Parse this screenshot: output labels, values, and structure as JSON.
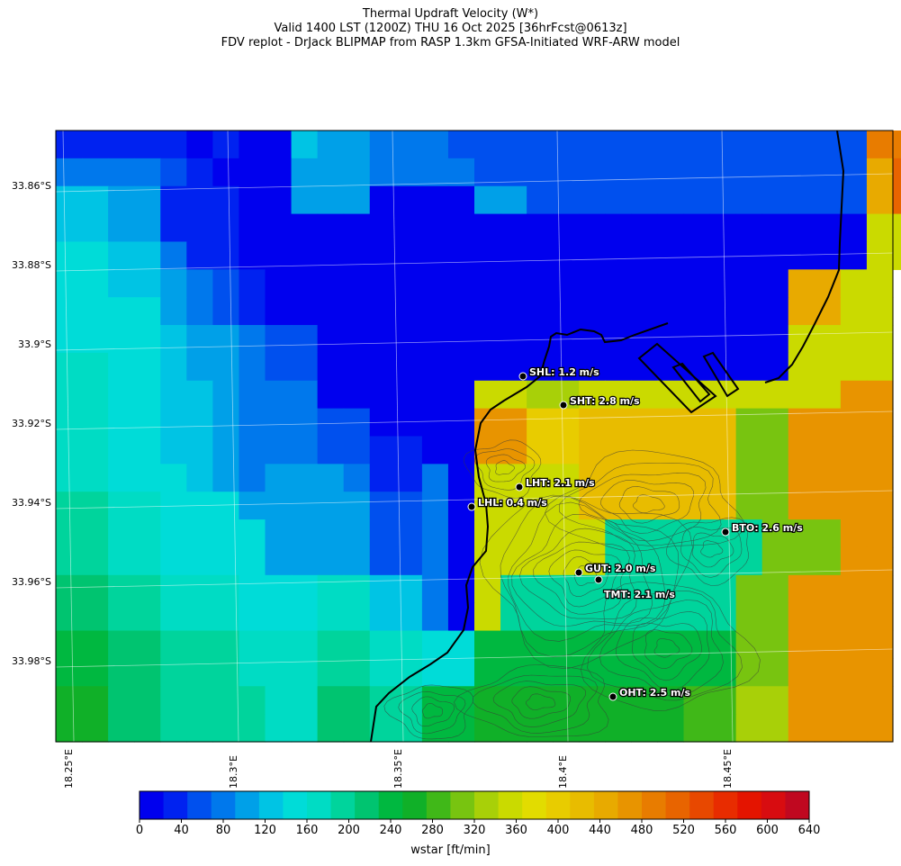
{
  "title": {
    "line1": "Thermal Updraft Velocity (W*)",
    "line2": "Valid 1400 LST (1200Z) THU 16 Oct 2025 [36hrFcst@0613z]",
    "line3": "FDV replot - DrJack BLIPMAP from RASP 1.3km GFSA-Initiated WRF-ARW model"
  },
  "axes": {
    "lat_ticks": [
      "33.86°S",
      "33.88°S",
      "33.9°S",
      "33.92°S",
      "33.94°S",
      "33.96°S",
      "33.98°S"
    ],
    "lon_ticks": [
      "18.25°E",
      "18.3°E",
      "18.35°E",
      "18.4°E",
      "18.45°E"
    ]
  },
  "stations": [
    {
      "label": "SHL: 1.2 m/s"
    },
    {
      "label": "SHT: 2.8 m/s"
    },
    {
      "label": "LHT: 2.1 m/s"
    },
    {
      "label": "LHL: 0.4 m/s"
    },
    {
      "label": "BTO: 2.6 m/s"
    },
    {
      "label": "GUT: 2.0 m/s"
    },
    {
      "label": "TMT: 2.1 m/s"
    },
    {
      "label": "OHT: 2.5 m/s"
    }
  ],
  "colorbar": {
    "tick_labels": [
      "0",
      "40",
      "80",
      "120",
      "160",
      "200",
      "240",
      "280",
      "320",
      "360",
      "400",
      "440",
      "480",
      "520",
      "560",
      "600",
      "640"
    ],
    "title": "wstar [ft/min]",
    "colors": [
      "#0000ee",
      "#0022f0",
      "#0050ee",
      "#0078ec",
      "#00a0e8",
      "#00c4e4",
      "#00dcd8",
      "#00dcc4",
      "#00d49c",
      "#00c470",
      "#00b840",
      "#10b028",
      "#40b818",
      "#78c410",
      "#a8d008",
      "#cada00",
      "#e2dc00",
      "#e8cc00",
      "#e8bc00",
      "#e8aa00",
      "#e89400",
      "#e87c00",
      "#e86400",
      "#e84800",
      "#e82c00",
      "#e41400",
      "#d80c10",
      "#c00820"
    ]
  },
  "map_data": {
    "grid": [
      "1111101005443332222222222222222ll",
      "3333210004443333222222222222222jm",
      "5544111004440000442222222222222jm",
      "5544111000000000000000000000000ff",
      "6655311000000000000000000000000ff",
      "6655432100000000000000000000jjff",
      "6666432100000000000000000000jjff",
      "6666544322000000000000000000ffff",
      "7766544322000000000000000000ffff",
      "7766554333000000ffeeffffffffffkk",
      "7766554333220000kkhhiiiiiiddkkkk",
      "7766554333221100kkhhiiiiiiddkkkk",
      "7766654344431130ffffiiiiiiddkkkk",
      "8877666444442230ffffiiiiiiddkkkk",
      "8877666644442230fffff888888dddkk",
      "8877666644442230fffff888888dddkk",
      "9988777666775530f888888888ddkkkk",
      "9988777666775530f888888888ddkkkk",
      "aa99888777887766aaaaaaaaaaddkkkk",
      "aa99888777887766aaaaaaaaaaddkkkk",
      "bb998888779988aabbbbbbbbcceekkkk",
      "bb998888779988aabbbbbbbbcceekkkk"
    ]
  }
}
